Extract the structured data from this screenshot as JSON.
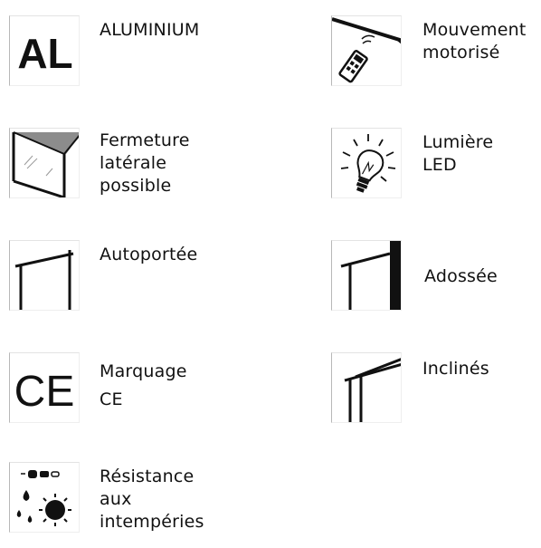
{
  "features": {
    "aluminium": {
      "label": "ALUMINIUM",
      "icon": "aluminium-al-icon",
      "icon_text": "AL"
    },
    "mouvement_motorise": {
      "label": "Mouvement\nmotorisé",
      "icon": "remote-control-icon"
    },
    "fermeture_laterale": {
      "label": "Fermeture\nlatérale\npossible",
      "icon": "side-glass-enclosure-icon"
    },
    "lumiere_led": {
      "label": "Lumière LED",
      "icon": "light-bulb-icon"
    },
    "autoportee": {
      "label": "Autoportée",
      "icon": "freestanding-frame-icon"
    },
    "adossee": {
      "label": "Adossée",
      "icon": "wall-mounted-frame-icon"
    },
    "marquage_ce": {
      "label": "Marquage\nCE",
      "icon": "ce-mark-icon",
      "icon_text": "CE"
    },
    "inclines": {
      "label": "Inclinés",
      "icon": "inclined-roof-icon"
    },
    "resistance": {
      "label": "Résistance\naux\nintempéries",
      "icon": "weather-resistance-icon"
    }
  },
  "colors": {
    "icon_dark": "#111111",
    "roof_grey": "#8c8c8c",
    "glass_grey": "#9a9a9a"
  }
}
